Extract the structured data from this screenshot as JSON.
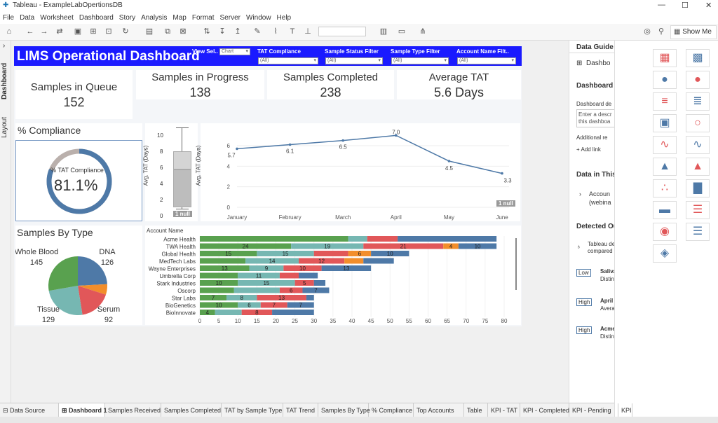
{
  "window": {
    "title": "Tableau - ExampleLabOpertionsDB",
    "minimize": "—",
    "maximize": "☐",
    "close": "✕"
  },
  "menu": [
    "File",
    "Data",
    "Worksheet",
    "Dashboard",
    "Story",
    "Analysis",
    "Map",
    "Format",
    "Server",
    "Window",
    "Help"
  ],
  "toolbar": {
    "show_me": "Show Me"
  },
  "left_tabs": {
    "dashboard": "Dashboard",
    "layout": "Layout",
    "collapse": "›"
  },
  "dashboard": {
    "title": "LIMS Operational Dashboard",
    "filters": [
      {
        "label": "View Sel..",
        "value": "Chart"
      },
      {
        "label": "TAT Compliance",
        "value": "(All)"
      },
      {
        "label": "Sample Status Filter",
        "value": "(All)"
      },
      {
        "label": "Sample Type Filter",
        "value": "(All)"
      },
      {
        "label": "Account Name Filt..",
        "value": "(All)"
      }
    ],
    "kpis": [
      {
        "label": "Samples in Queue",
        "value": "152"
      },
      {
        "label": "Samples in Progress",
        "value": "138"
      },
      {
        "label": "Samples Completed",
        "value": "238"
      },
      {
        "label": "Average TAT",
        "value": "5.6 Days"
      }
    ],
    "compliance": {
      "title": "% Compliance",
      "label": "% TAT Compliance",
      "value_text": "81.1%",
      "fraction": 0.811
    },
    "boxplot": {
      "ylabel": "Avg. TAT (Days)",
      "ticks": [
        "0",
        "2",
        "4",
        "6",
        "8",
        "10"
      ],
      "null_label": "1 null"
    },
    "sample_types": {
      "title": "Samples By Type"
    }
  },
  "colors": {
    "blue": "#4e79a7",
    "green": "#59a14f",
    "teal": "#76b7b2",
    "red": "#e15759",
    "orange": "#f28e2b",
    "grey": "#bab0ac",
    "header": "#1a1aff"
  },
  "chart_data": [
    {
      "type": "line",
      "x": [
        "January",
        "February",
        "March",
        "April",
        "May",
        "June"
      ],
      "series": [
        {
          "values": [
            5.7,
            6.1,
            6.5,
            7.0,
            4.5,
            3.3
          ]
        }
      ],
      "ylabel": "Avg. TAT (Days)",
      "yticks": [
        "0",
        "2",
        "4",
        "6"
      ],
      "ylim": [
        0,
        7.5
      ],
      "null_label": "1 null",
      "grid": true
    },
    {
      "type": "pie",
      "slices": [
        {
          "name": "DNA",
          "value": 126,
          "color": "#4e79a7"
        },
        {
          "name": "",
          "value": 30,
          "color": "#f28e2b"
        },
        {
          "name": "Serum",
          "value": 92,
          "color": "#e15759"
        },
        {
          "name": "Tissue",
          "value": 129,
          "color": "#76b7b2"
        },
        {
          "name": "Whole Blood",
          "value": 145,
          "color": "#59a14f"
        }
      ]
    },
    {
      "type": "bar",
      "orientation": "horizontal",
      "stacked": true,
      "header": "Account Name",
      "categories": [
        "Acme Health",
        "TWA Health",
        "Global Health",
        "MedTech Labs",
        "Wayne Enterprises",
        "Umbrella Corp",
        "Stark Industries",
        "Oscorp",
        "Star Labs",
        "BioGenetics",
        "BioInnovate"
      ],
      "segments": [
        [
          {
            "v": 39,
            "c": "green",
            "l": ""
          },
          {
            "v": 5,
            "c": "teal",
            "l": ""
          },
          {
            "v": 8,
            "c": "red",
            "l": ""
          },
          {
            "v": 26,
            "c": "blue",
            "l": ""
          }
        ],
        [
          {
            "v": 24,
            "c": "green",
            "l": "24"
          },
          {
            "v": 19,
            "c": "teal",
            "l": "19"
          },
          {
            "v": 21,
            "c": "red",
            "l": "21"
          },
          {
            "v": 4,
            "c": "orange",
            "l": "4"
          },
          {
            "v": 10,
            "c": "blue",
            "l": "10"
          }
        ],
        [
          {
            "v": 15,
            "c": "green",
            "l": "15"
          },
          {
            "v": 15,
            "c": "teal",
            "l": "15"
          },
          {
            "v": 9,
            "c": "red",
            "l": ""
          },
          {
            "v": 6,
            "c": "orange",
            "l": "6"
          },
          {
            "v": 10,
            "c": "blue",
            "l": "10"
          }
        ],
        [
          {
            "v": 12,
            "c": "green",
            "l": ""
          },
          {
            "v": 14,
            "c": "teal",
            "l": "14"
          },
          {
            "v": 12,
            "c": "red",
            "l": "12"
          },
          {
            "v": 5,
            "c": "orange",
            "l": ""
          },
          {
            "v": 8,
            "c": "blue",
            "l": ""
          }
        ],
        [
          {
            "v": 13,
            "c": "green",
            "l": "13"
          },
          {
            "v": 9,
            "c": "teal",
            "l": "9"
          },
          {
            "v": 10,
            "c": "red",
            "l": "10"
          },
          {
            "v": 13,
            "c": "blue",
            "l": "13"
          }
        ],
        [
          {
            "v": 10,
            "c": "green",
            "l": ""
          },
          {
            "v": 11,
            "c": "teal",
            "l": "11"
          },
          {
            "v": 5,
            "c": "red",
            "l": ""
          },
          {
            "v": 5,
            "c": "blue",
            "l": ""
          }
        ],
        [
          {
            "v": 10,
            "c": "green",
            "l": "10"
          },
          {
            "v": 15,
            "c": "teal",
            "l": "15"
          },
          {
            "v": 5,
            "c": "red",
            "l": "5"
          },
          {
            "v": 3,
            "c": "blue",
            "l": ""
          }
        ],
        [
          {
            "v": 9,
            "c": "green",
            "l": ""
          },
          {
            "v": 12,
            "c": "teal",
            "l": ""
          },
          {
            "v": 6,
            "c": "red",
            "l": "6"
          },
          {
            "v": 7,
            "c": "blue",
            "l": "7"
          }
        ],
        [
          {
            "v": 7,
            "c": "green",
            "l": "7"
          },
          {
            "v": 8,
            "c": "teal",
            "l": "8"
          },
          {
            "v": 13,
            "c": "red",
            "l": "13"
          },
          {
            "v": 2,
            "c": "blue",
            "l": ""
          }
        ],
        [
          {
            "v": 10,
            "c": "green",
            "l": "10"
          },
          {
            "v": 6,
            "c": "teal",
            "l": "6"
          },
          {
            "v": 7,
            "c": "red",
            "l": "7"
          },
          {
            "v": 7,
            "c": "blue",
            "l": "7"
          }
        ],
        [
          {
            "v": 4,
            "c": "green",
            "l": "4"
          },
          {
            "v": 7,
            "c": "teal",
            "l": ""
          },
          {
            "v": 8,
            "c": "red",
            "l": "8"
          },
          {
            "v": 11,
            "c": "blue",
            "l": ""
          }
        ]
      ],
      "xticks": [
        "0",
        "5",
        "10",
        "15",
        "20",
        "25",
        "30",
        "35",
        "40",
        "45",
        "50",
        "55",
        "60",
        "65",
        "70",
        "75",
        "80"
      ],
      "xlim": [
        0,
        80
      ]
    }
  ],
  "data_guide": {
    "header": "Data Guide",
    "dashboard_label": "Dashbo",
    "dashboard_section": "Dashboard l",
    "desc_label": "Dashboard de",
    "desc_placeholder": "Enter a descr this dashboa",
    "additional": "Additional re",
    "add_link": "Add link",
    "data_in_this": "Data in This",
    "account_1": "Accoun",
    "account_2": "(webina",
    "detected": "Detected Ou",
    "detected_text_1": "Tableau de",
    "detected_text_2": "compared",
    "items": [
      {
        "badge": "Low",
        "text_1": "Saliva",
        "text_2": "Distin"
      },
      {
        "badge": "High",
        "text_1": "April",
        "text_2": "Avera"
      },
      {
        "badge": "High",
        "text_1": "Acme",
        "text_2": "Distin"
      }
    ]
  },
  "sheet_tabs": [
    "Data Source",
    "Dashboard 1",
    "Samples Received",
    "Samples Completed",
    "TAT by Sample Type",
    "TAT Trend",
    "Samples By Type",
    "% Compliance",
    "Top Accounts",
    "Table",
    "KPI - TAT",
    "KPI - Completed",
    "KPI - Pending",
    "KPI"
  ]
}
